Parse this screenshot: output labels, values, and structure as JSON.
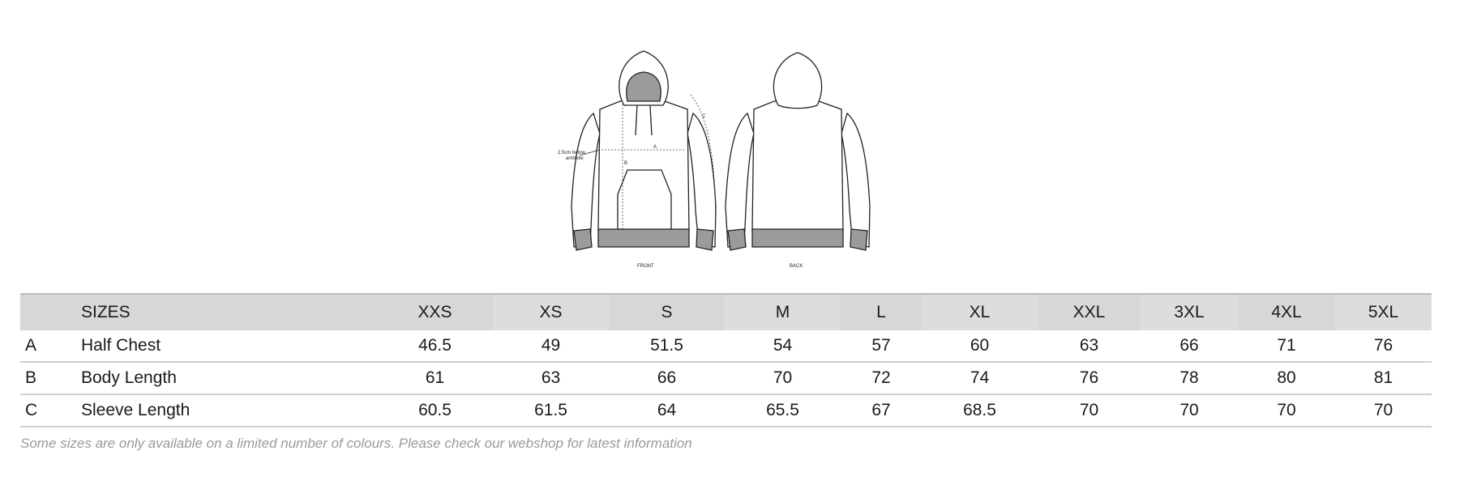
{
  "diagram": {
    "front_label": "FRONT",
    "back_label": "BACK",
    "armhole_note_line1": "2.5cm below",
    "armhole_note_line2": "armhole",
    "measure_a": "A",
    "measure_b": "B",
    "measure_c": "C"
  },
  "table": {
    "header": [
      "",
      "SIZES",
      "XXS",
      "XS",
      "S",
      "M",
      "L",
      "XL",
      "XXL",
      "3XL",
      "4XL",
      "5XL"
    ],
    "rows": [
      [
        "A",
        "Half Chest",
        "46.5",
        "49",
        "51.5",
        "54",
        "57",
        "60",
        "63",
        "66",
        "71",
        "76"
      ],
      [
        "B",
        "Body Length",
        "61",
        "63",
        "66",
        "70",
        "72",
        "74",
        "76",
        "78",
        "80",
        "81"
      ],
      [
        "C",
        "Sleeve Length",
        "60.5",
        "61.5",
        "64",
        "65.5",
        "67",
        "68.5",
        "70",
        "70",
        "70",
        "70"
      ]
    ]
  },
  "footnote": "Some sizes are only available on a limited number of colours. Please check our webshop for latest information",
  "colors": {
    "header_bg": "#d6d7d9",
    "rib_grey": "#9b9b9b",
    "footnote_text": "#9a9a9a"
  }
}
